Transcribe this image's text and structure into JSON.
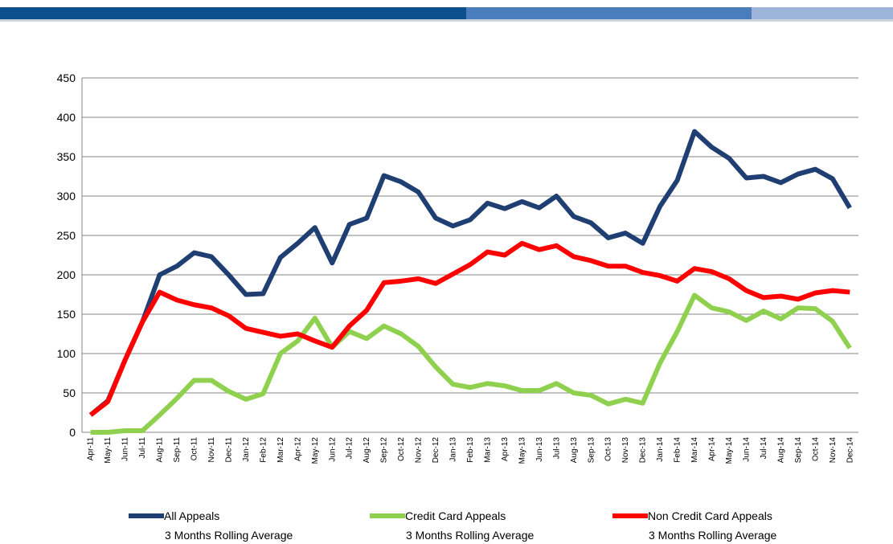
{
  "chart_data": {
    "type": "line",
    "categories": [
      "Apr-11",
      "May-11",
      "Jun-11",
      "Jul-11",
      "Aug-11",
      "Sep-11",
      "Oct-11",
      "Nov-11",
      "Dec-11",
      "Jan-12",
      "Feb-12",
      "Mar-12",
      "Apr-12",
      "May-12",
      "Jun-12",
      "Jul-12",
      "Aug-12",
      "Sep-12",
      "Oct-12",
      "Nov-12",
      "Dec-12",
      "Jan-13",
      "Feb-13",
      "Mar-13",
      "Apr-13",
      "May-13",
      "Jun-13",
      "Jul-13",
      "Aug-13",
      "Sep-13",
      "Oct-13",
      "Nov-13",
      "Dec-13",
      "Jan-14",
      "Feb-14",
      "Mar-14",
      "Apr-14",
      "May-14",
      "Jun-14",
      "Jul-14",
      "Aug-14",
      "Sep-14",
      "Oct-14",
      "Nov-14",
      "Dec-14"
    ],
    "series": [
      {
        "name": "All Appeals",
        "note": "3 Months Rolling Average",
        "color": "#1f3f73",
        "values": [
          22,
          40,
          92,
          140,
          200,
          211,
          228,
          223,
          200,
          175,
          176,
          222,
          240,
          260,
          215,
          264,
          272,
          326,
          318,
          305,
          272,
          262,
          270,
          291,
          284,
          293,
          285,
          300,
          274,
          266,
          247,
          253,
          240,
          287,
          320,
          382,
          362,
          348,
          323,
          325,
          317,
          328,
          334,
          322,
          285
        ]
      },
      {
        "name": "Credit Card Appeals",
        "note": "3 Months Rolling Average",
        "color": "#8fd14f",
        "values": [
          0,
          0,
          2,
          2,
          22,
          43,
          66,
          66,
          52,
          42,
          49,
          100,
          116,
          145,
          108,
          128,
          119,
          135,
          125,
          109,
          83,
          61,
          57,
          62,
          59,
          53,
          53,
          62,
          50,
          47,
          36,
          42,
          37,
          88,
          128,
          174,
          158,
          153,
          142,
          154,
          144,
          158,
          157,
          141,
          107
        ]
      },
      {
        "name": "Non Credit Card Appeals",
        "note": "3 Months Rolling Average",
        "color": "#ff0000",
        "values": [
          22,
          39,
          92,
          140,
          178,
          168,
          162,
          158,
          148,
          132,
          127,
          122,
          125,
          116,
          108,
          135,
          155,
          190,
          192,
          195,
          189,
          201,
          213,
          229,
          225,
          240,
          232,
          237,
          223,
          218,
          211,
          211,
          203,
          199,
          192,
          208,
          204,
          195,
          180,
          171,
          173,
          169,
          177,
          180,
          178
        ]
      }
    ],
    "ylim": [
      0,
      450
    ],
    "yticks": [
      0,
      50,
      100,
      150,
      200,
      250,
      300,
      350,
      400,
      450
    ],
    "grid": true
  }
}
